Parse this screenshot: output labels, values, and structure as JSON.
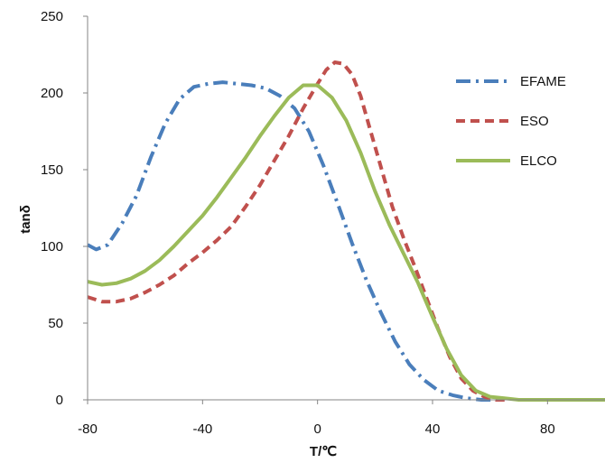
{
  "chart_data": {
    "type": "line",
    "xlabel": "T/℃",
    "ylabel": "tanδ",
    "xlim": [
      -80,
      100
    ],
    "ylim": [
      0,
      250
    ],
    "xticks": [
      -80,
      -40,
      0,
      40,
      80
    ],
    "yticks": [
      0,
      50,
      100,
      150,
      200,
      250
    ],
    "grid": false,
    "legend_position": "right",
    "series": [
      {
        "name": "EFAME",
        "color": "#4a7ebb",
        "dash": "dashdot",
        "x": [
          -80,
          -77,
          -73,
          -68,
          -63,
          -58,
          -53,
          -48,
          -43,
          -38,
          -33,
          -28,
          -23,
          -18,
          -13,
          -8,
          -3,
          2,
          7,
          12,
          17,
          22,
          27,
          32,
          37,
          42,
          47,
          52,
          57,
          62
        ],
        "y": [
          101,
          98,
          101,
          115,
          133,
          158,
          180,
          196,
          204,
          206,
          207,
          206,
          205,
          203,
          198,
          190,
          175,
          153,
          128,
          102,
          78,
          57,
          38,
          23,
          13,
          6,
          3,
          1,
          0,
          0
        ]
      },
      {
        "name": "ESO",
        "color": "#c0504d",
        "dash": "dash",
        "x": [
          -80,
          -75,
          -70,
          -65,
          -60,
          -55,
          -50,
          -45,
          -40,
          -35,
          -30,
          -25,
          -20,
          -15,
          -10,
          -5,
          0,
          3,
          6,
          9,
          12,
          15,
          18,
          22,
          26,
          30,
          34,
          38,
          42,
          46,
          50,
          54,
          58,
          62,
          66
        ],
        "y": [
          67,
          64,
          64,
          66,
          70,
          75,
          81,
          89,
          96,
          104,
          113,
          126,
          140,
          156,
          172,
          190,
          206,
          215,
          220,
          219,
          212,
          198,
          178,
          152,
          126,
          105,
          86,
          66,
          46,
          28,
          14,
          6,
          2,
          0,
          0
        ]
      },
      {
        "name": "ELCO",
        "color": "#9bbb59",
        "dash": "solid",
        "x": [
          -80,
          -75,
          -70,
          -65,
          -60,
          -55,
          -50,
          -45,
          -40,
          -35,
          -30,
          -25,
          -20,
          -15,
          -10,
          -5,
          0,
          5,
          10,
          15,
          20,
          25,
          30,
          35,
          40,
          45,
          50,
          55,
          60,
          65,
          70,
          80,
          90,
          100
        ],
        "y": [
          77,
          75,
          76,
          79,
          84,
          91,
          100,
          110,
          120,
          132,
          145,
          158,
          172,
          185,
          197,
          205,
          205,
          197,
          182,
          161,
          136,
          114,
          95,
          76,
          54,
          33,
          16,
          6,
          2,
          1,
          0,
          0,
          0,
          0
        ]
      }
    ]
  }
}
